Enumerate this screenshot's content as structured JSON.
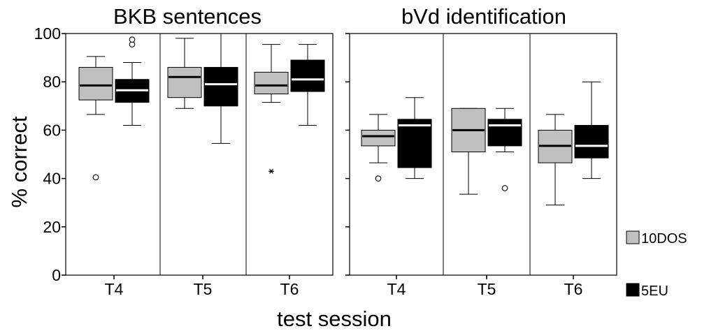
{
  "chart_data": {
    "type": "boxplot",
    "xlabel": "test session",
    "ylabel": "% correct",
    "ylim": [
      0,
      100
    ],
    "yticks": [
      0,
      20,
      40,
      60,
      80,
      100
    ],
    "grid": false,
    "legend": {
      "placement": "right",
      "entries": [
        {
          "name": "10DOS",
          "color": "#c0c0c0"
        },
        {
          "name": "5EU",
          "color": "#000000"
        }
      ]
    },
    "panels": [
      {
        "title": "BKB sentences",
        "categories": [
          "T4",
          "T5",
          "T6"
        ],
        "series": [
          {
            "name": "10DOS",
            "color": "#c0c0c0",
            "median_color": "#000000",
            "boxes": [
              {
                "min": 66.5,
                "q1": 72.5,
                "median": 78.5,
                "q3": 86,
                "max": 90.5,
                "outliers": [
                  {
                    "value": 40.5,
                    "marker": "circle"
                  }
                ]
              },
              {
                "min": 69,
                "q1": 73.5,
                "median": 82,
                "q3": 86,
                "max": 98,
                "outliers": []
              },
              {
                "min": 71.5,
                "q1": 75,
                "median": 78.5,
                "q3": 84,
                "max": 95.5,
                "outliers": [
                  {
                    "value": 43,
                    "marker": "star"
                  }
                ]
              }
            ]
          },
          {
            "name": "5EU",
            "color": "#000000",
            "median_color": "#ffffff",
            "boxes": [
              {
                "min": 62,
                "q1": 71.5,
                "median": 76.5,
                "q3": 81,
                "max": 88,
                "outliers": [
                  {
                    "value": 95.5,
                    "marker": "circle"
                  },
                  {
                    "value": 97.5,
                    "marker": "circle"
                  }
                ]
              },
              {
                "min": 54.5,
                "q1": 70,
                "median": 79,
                "q3": 86,
                "max": 100,
                "outliers": []
              },
              {
                "min": 62,
                "q1": 76,
                "median": 81,
                "q3": 89,
                "max": 95.5,
                "outliers": []
              }
            ]
          }
        ]
      },
      {
        "title": "bVd identification",
        "categories": [
          "T4",
          "T5",
          "T6"
        ],
        "series": [
          {
            "name": "10DOS",
            "color": "#c0c0c0",
            "median_color": "#000000",
            "boxes": [
              {
                "min": 46.5,
                "q1": 53.5,
                "median": 57.5,
                "q3": 60,
                "max": 66.5,
                "outliers": [
                  {
                    "value": 40,
                    "marker": "circle"
                  }
                ]
              },
              {
                "min": 33.5,
                "q1": 51,
                "median": 60,
                "q3": 69,
                "max": 69,
                "outliers": []
              },
              {
                "min": 29,
                "q1": 46.5,
                "median": 53.5,
                "q3": 60,
                "max": 66.5,
                "outliers": []
              }
            ]
          },
          {
            "name": "5EU",
            "color": "#000000",
            "median_color": "#ffffff",
            "boxes": [
              {
                "min": 40,
                "q1": 44.5,
                "median": 62,
                "q3": 64.5,
                "max": 73.5,
                "outliers": []
              },
              {
                "min": 51,
                "q1": 53.5,
                "median": 62,
                "q3": 64.5,
                "max": 69,
                "outliers": [
                  {
                    "value": 36,
                    "marker": "circle"
                  }
                ]
              },
              {
                "min": 40,
                "q1": 48.5,
                "median": 53.5,
                "q3": 62,
                "max": 80,
                "outliers": []
              }
            ]
          }
        ]
      }
    ]
  }
}
